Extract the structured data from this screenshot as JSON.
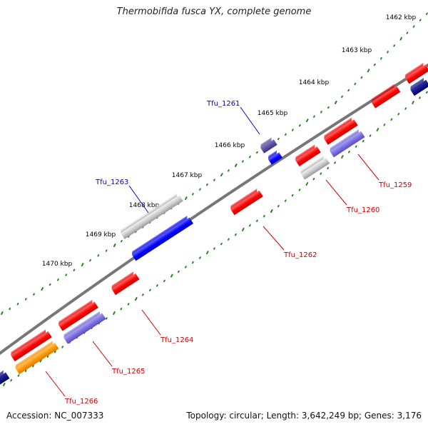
{
  "title": "Thermobifida fusca YX, complete genome",
  "accession": "Accession: NC_007333",
  "summary": "Topology: circular; Length: 3,642,249 bp; Genes: 3,176",
  "colors": {
    "forward_feature": "#ff0000",
    "reverse_feature": "#0000ff",
    "highlight_label": "#0000cc",
    "feature_label": "#cc0000",
    "backbone": "#777777",
    "tick": "#228822"
  },
  "ruler": [
    {
      "label": "1462 kbp"
    },
    {
      "label": "1463 kbp"
    },
    {
      "label": "1464 kbp"
    },
    {
      "label": "1465 kbp"
    },
    {
      "label": "1466 kbp"
    },
    {
      "label": "1467 kbp"
    },
    {
      "label": "1468 kbp"
    },
    {
      "label": "1469 kbp"
    },
    {
      "label": "1470 kbp"
    }
  ],
  "genes": [
    {
      "label": "Tfu_1259",
      "type": "red"
    },
    {
      "label": "Tfu_1260",
      "type": "red"
    },
    {
      "label": "Tfu_1261",
      "type": "blue"
    },
    {
      "label": "Tfu_1262",
      "type": "red"
    },
    {
      "label": "Tfu_1263",
      "type": "blue"
    },
    {
      "label": "Tfu_1264",
      "type": "red"
    },
    {
      "label": "Tfu_1265",
      "type": "red"
    },
    {
      "label": "Tfu_1266",
      "type": "red"
    }
  ]
}
